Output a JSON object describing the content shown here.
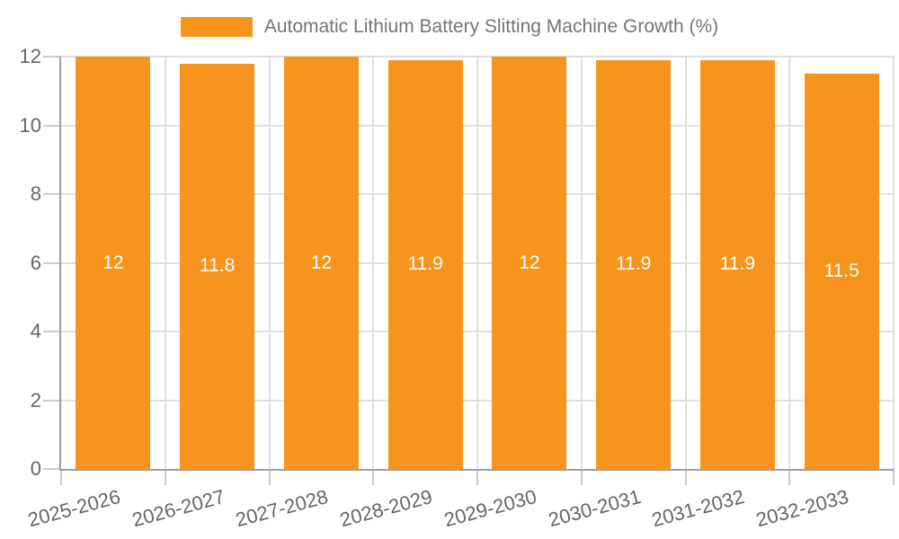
{
  "chart_data": {
    "type": "bar",
    "title": "Automatic Lithium Battery Slitting Machine Growth (%)",
    "categories": [
      "2025-2026",
      "2026-2027",
      "2027-2028",
      "2028-2029",
      "2029-2030",
      "2030-2031",
      "2031-2032",
      "2032-2033"
    ],
    "values": [
      12,
      11.8,
      12,
      11.9,
      12,
      11.9,
      11.9,
      11.5
    ],
    "bar_labels": [
      "12",
      "11.8",
      "12",
      "11.9",
      "12",
      "11.9",
      "11.9",
      "11.5"
    ],
    "y_ticks": [
      0,
      2,
      4,
      6,
      8,
      10,
      12
    ],
    "y_tick_labels": [
      "0",
      "2",
      "4",
      "6",
      "8",
      "10",
      "12"
    ],
    "ylim": [
      0,
      12
    ],
    "xlabel": "",
    "ylabel": "",
    "grid": true,
    "legend_position": "top",
    "colors": {
      "bar": "#F7941E",
      "grid_line": "#E0E0E0",
      "axis_line": "#9E9E9E",
      "tick_mark": "#CCCCCC",
      "axis_label_text": "#666666",
      "legend_text": "#757575",
      "bar_label_text": "#FFFFFF",
      "background": "#FFFFFF"
    }
  }
}
